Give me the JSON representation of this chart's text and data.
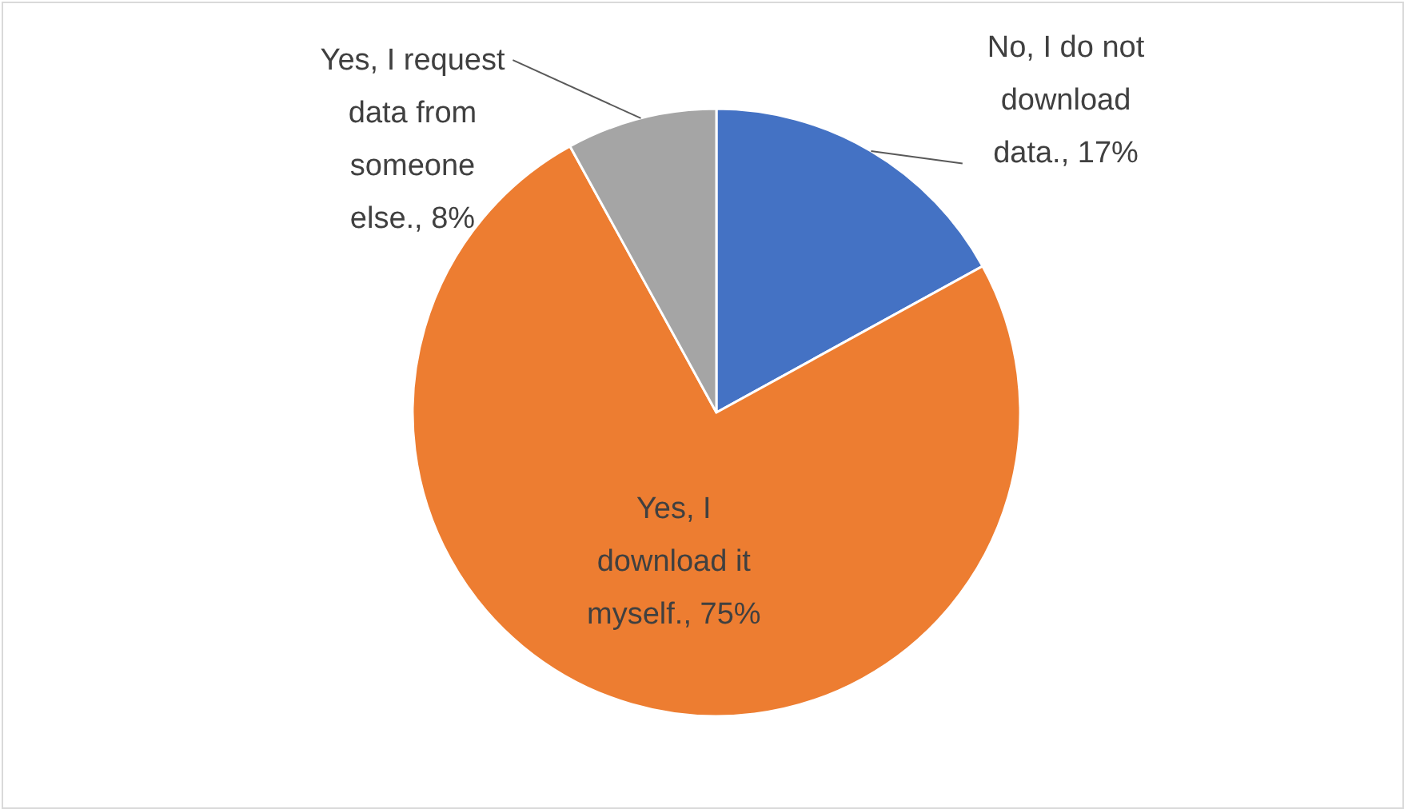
{
  "chart_data": {
    "type": "pie",
    "categories": [
      "No, I do not download data.",
      "Yes, I download it myself.",
      "Yes, I request data from someone else."
    ],
    "values": [
      17,
      75,
      8
    ],
    "value_labels": [
      "17%",
      "75%",
      "8%"
    ],
    "colors": [
      "#4472c4",
      "#ed7d31",
      "#a5a5a5"
    ]
  }
}
